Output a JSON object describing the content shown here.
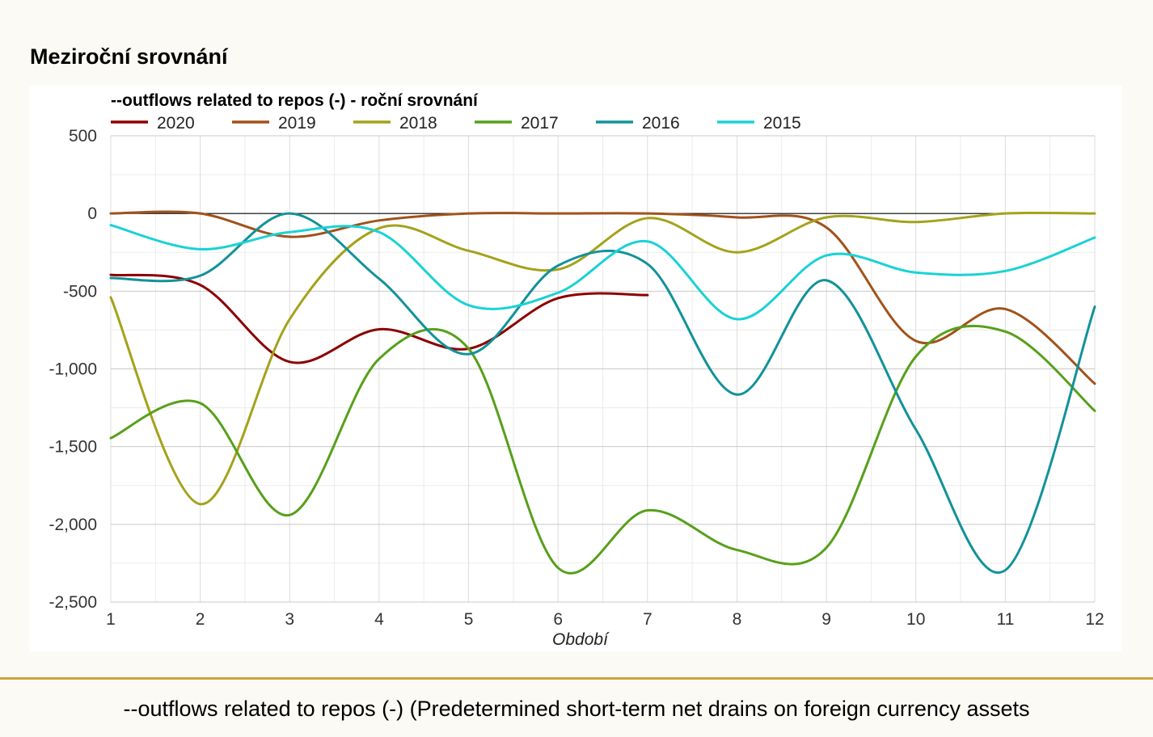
{
  "page": {
    "title": "Meziroční srovnání",
    "footer": "--outflows related to repos (-) (Predetermined short-term net drains on foreign currency assets"
  },
  "colors": {
    "background": "#fbfaf4",
    "panel": "#ffffff",
    "divider": "#c9a43b",
    "grid": "#d4d4d4",
    "zero_line": "#000000"
  },
  "chart_data": {
    "type": "line",
    "title": "--outflows related to repos (-) - roční srovnání",
    "xlabel": "Období",
    "ylabel": "",
    "xlim": [
      1,
      12
    ],
    "ylim": [
      -2500,
      500
    ],
    "x_ticks": [
      1,
      2,
      3,
      4,
      5,
      6,
      7,
      8,
      9,
      10,
      11,
      12
    ],
    "y_ticks": [
      500,
      0,
      -500,
      -1000,
      -1500,
      -2000,
      -2500
    ],
    "y_tick_labels": [
      "500",
      "0",
      "-500",
      "-1,000",
      "-1,500",
      "-2,000",
      "-2,500"
    ],
    "legend_position": "top-left",
    "grid": true,
    "smooth": true,
    "series": [
      {
        "name": "2020",
        "color": "#8b0000",
        "x": [
          1,
          2,
          3,
          4,
          5,
          6,
          7
        ],
        "y": [
          -395,
          -460,
          -955,
          -745,
          -870,
          -545,
          -525
        ]
      },
      {
        "name": "2019",
        "color": "#a0521a",
        "x": [
          1,
          2,
          3,
          4,
          5,
          6,
          7,
          8,
          9,
          10,
          11,
          12
        ],
        "y": [
          0,
          0,
          -150,
          -45,
          0,
          0,
          0,
          -25,
          -90,
          -820,
          -615,
          -1095
        ]
      },
      {
        "name": "2018",
        "color": "#a4a21a",
        "x": [
          1,
          2,
          3,
          4,
          5,
          6,
          7,
          8,
          9,
          10,
          11,
          12
        ],
        "y": [
          -540,
          -1870,
          -680,
          -95,
          -240,
          -360,
          -30,
          -250,
          -25,
          -55,
          0,
          0
        ]
      },
      {
        "name": "2017",
        "color": "#57a01a",
        "x": [
          1,
          2,
          3,
          4,
          5,
          6,
          7,
          8,
          9,
          10,
          11,
          12
        ],
        "y": [
          -1445,
          -1220,
          -1940,
          -935,
          -870,
          -2280,
          -1910,
          -2165,
          -2150,
          -920,
          -760,
          -1270
        ]
      },
      {
        "name": "2016",
        "color": "#12929a",
        "x": [
          1,
          2,
          3,
          4,
          5,
          6,
          7,
          8,
          9,
          10,
          11,
          12
        ],
        "y": [
          -415,
          -400,
          0,
          -420,
          -905,
          -335,
          -325,
          -1165,
          -430,
          -1390,
          -2295,
          -600
        ]
      },
      {
        "name": "2015",
        "color": "#19d2d6",
        "x": [
          1,
          2,
          3,
          4,
          5,
          6,
          7,
          8,
          9,
          10,
          11,
          12
        ],
        "y": [
          -75,
          -230,
          -120,
          -120,
          -590,
          -510,
          -180,
          -680,
          -270,
          -380,
          -370,
          -155
        ]
      }
    ]
  }
}
